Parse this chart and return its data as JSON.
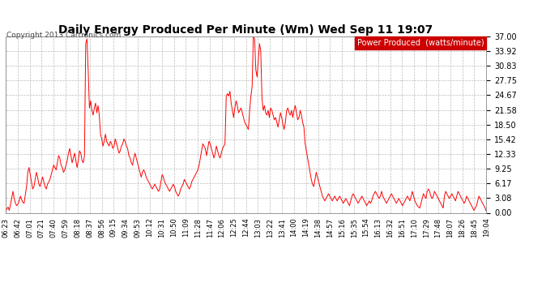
{
  "title": "Daily Energy Produced Per Minute (Wm) Wed Sep 11 19:07",
  "copyright": "Copyright 2013 Cartronics.com",
  "legend_label": "Power Produced  (watts/minute)",
  "yticks": [
    0.0,
    3.08,
    6.17,
    9.25,
    12.33,
    15.42,
    18.5,
    21.58,
    24.67,
    27.75,
    30.83,
    33.92,
    37.0
  ],
  "xtick_labels": [
    "06:23",
    "06:42",
    "07:01",
    "07:21",
    "07:40",
    "07:59",
    "08:18",
    "08:37",
    "08:56",
    "09:15",
    "09:34",
    "09:53",
    "10:12",
    "10:31",
    "10:50",
    "11:09",
    "11:28",
    "11:47",
    "12:06",
    "12:25",
    "12:44",
    "13:03",
    "13:22",
    "13:41",
    "14:00",
    "14:19",
    "14:38",
    "14:57",
    "15:16",
    "15:35",
    "15:54",
    "16:13",
    "16:32",
    "16:51",
    "17:10",
    "17:29",
    "17:48",
    "18:07",
    "18:26",
    "18:45",
    "19:04"
  ],
  "line_color": "#FF0000",
  "bg_color": "#FFFFFF",
  "grid_color": "#BBBBBB",
  "title_color": "#000000",
  "legend_bg": "#CC0000",
  "legend_text_color": "#FFFFFF",
  "ylim": [
    0.0,
    37.0
  ],
  "y_values": [
    0.3,
    0.8,
    1.2,
    0.5,
    1.8,
    3.2,
    4.5,
    3.0,
    2.0,
    1.5,
    1.8,
    2.5,
    3.5,
    2.8,
    2.2,
    2.0,
    3.8,
    5.5,
    8.5,
    9.5,
    8.0,
    6.5,
    5.0,
    5.5,
    7.0,
    8.5,
    7.5,
    6.0,
    5.5,
    6.5,
    7.5,
    6.5,
    5.5,
    5.0,
    6.0,
    6.5,
    7.0,
    8.0,
    9.0,
    10.0,
    9.5,
    9.0,
    10.5,
    12.0,
    11.5,
    10.0,
    9.5,
    8.5,
    9.0,
    10.0,
    11.0,
    12.5,
    13.5,
    12.0,
    10.5,
    11.5,
    12.5,
    11.0,
    9.5,
    11.0,
    13.0,
    12.5,
    11.0,
    10.5,
    12.0,
    35.5,
    36.5,
    30.0,
    22.0,
    23.5,
    21.5,
    20.5,
    22.0,
    23.0,
    21.0,
    22.5,
    20.5,
    16.5,
    15.5,
    14.0,
    15.0,
    16.5,
    15.0,
    14.5,
    14.0,
    15.0,
    14.5,
    13.5,
    14.0,
    15.5,
    14.5,
    13.5,
    12.5,
    13.0,
    14.0,
    14.5,
    15.5,
    15.0,
    14.0,
    13.5,
    12.0,
    11.5,
    10.5,
    10.0,
    11.5,
    12.5,
    11.5,
    10.5,
    9.5,
    8.5,
    7.5,
    8.5,
    9.0,
    8.5,
    7.5,
    7.0,
    6.5,
    6.0,
    5.5,
    5.0,
    5.5,
    6.0,
    5.5,
    5.0,
    4.5,
    5.0,
    6.5,
    8.0,
    7.5,
    6.5,
    6.0,
    5.5,
    5.0,
    4.5,
    5.0,
    5.5,
    6.0,
    5.5,
    4.5,
    4.0,
    3.5,
    4.0,
    5.0,
    5.5,
    6.0,
    7.0,
    6.5,
    6.0,
    5.5,
    5.0,
    5.5,
    6.5,
    7.0,
    7.5,
    8.0,
    8.5,
    9.0,
    10.0,
    11.5,
    13.0,
    14.5,
    14.0,
    13.5,
    12.0,
    13.5,
    15.0,
    14.5,
    13.5,
    12.5,
    11.5,
    12.5,
    14.0,
    13.0,
    12.0,
    11.5,
    12.5,
    13.5,
    14.0,
    14.5,
    24.5,
    25.0,
    24.5,
    25.5,
    23.0,
    21.5,
    20.0,
    22.0,
    23.5,
    22.5,
    21.0,
    21.5,
    22.0,
    21.0,
    20.0,
    19.0,
    18.5,
    18.0,
    17.5,
    21.5,
    24.5,
    26.5,
    37.0,
    36.5,
    30.0,
    28.5,
    32.0,
    35.5,
    34.0,
    24.0,
    21.5,
    22.5,
    21.0,
    20.5,
    21.5,
    20.0,
    22.0,
    21.5,
    20.5,
    19.5,
    20.0,
    19.0,
    18.0,
    19.5,
    21.0,
    20.0,
    18.5,
    17.5,
    19.0,
    21.5,
    22.0,
    21.0,
    20.5,
    21.5,
    20.0,
    21.5,
    22.5,
    21.0,
    19.5,
    20.0,
    21.5,
    20.5,
    19.0,
    18.0,
    14.5,
    13.0,
    11.5,
    10.0,
    8.5,
    7.0,
    6.0,
    5.5,
    7.0,
    8.5,
    7.5,
    6.5,
    5.5,
    4.5,
    3.5,
    3.0,
    2.5,
    3.0,
    3.5,
    4.0,
    3.5,
    3.0,
    2.5,
    3.0,
    3.5,
    3.0,
    2.5,
    3.0,
    3.5,
    3.0,
    2.5,
    2.0,
    2.5,
    3.0,
    2.5,
    2.0,
    1.5,
    2.5,
    3.5,
    4.0,
    3.5,
    3.0,
    2.5,
    2.0,
    2.5,
    3.0,
    3.5,
    3.0,
    2.5,
    2.0,
    1.5,
    2.0,
    2.5,
    2.0,
    2.5,
    3.5,
    4.0,
    4.5,
    4.0,
    3.5,
    3.0,
    3.5,
    4.5,
    3.5,
    3.0,
    2.5,
    2.0,
    2.5,
    3.0,
    3.5,
    4.0,
    3.5,
    3.0,
    2.5,
    2.0,
    2.5,
    3.0,
    2.5,
    2.0,
    1.5,
    2.0,
    2.5,
    3.0,
    3.5,
    3.0,
    2.5,
    3.5,
    4.5,
    3.5,
    2.5,
    2.0,
    1.5,
    1.2,
    1.0,
    2.0,
    3.0,
    4.0,
    3.5,
    3.0,
    4.5,
    5.0,
    4.5,
    3.5,
    3.0,
    3.5,
    4.5,
    4.0,
    3.5,
    3.0,
    2.5,
    2.0,
    1.5,
    1.0,
    3.5,
    4.5,
    4.0,
    3.5,
    3.0,
    3.5,
    4.0,
    3.5,
    3.0,
    2.5,
    3.5,
    4.5,
    4.0,
    3.5,
    3.0,
    2.5,
    2.0,
    2.5,
    3.5,
    3.0,
    2.5,
    2.0,
    1.5,
    1.0,
    0.5,
    1.0,
    1.5,
    2.5,
    3.5,
    3.0,
    2.5,
    2.0,
    1.5,
    1.0,
    0.3
  ]
}
